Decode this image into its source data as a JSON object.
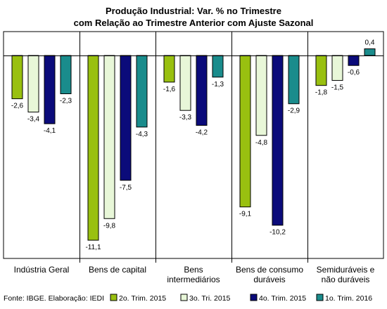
{
  "chart_data": {
    "type": "bar",
    "title": "Produção Industrial: Var. % no Trimestre",
    "subtitle": "com Relação ao Trimestre Anterior com Ajuste Sazonal",
    "categories": [
      [
        "Indústria Geral"
      ],
      [
        "Bens de capital"
      ],
      [
        "Bens",
        "intermediários"
      ],
      [
        "Bens de consumo",
        "duráveis"
      ],
      [
        "Semiduráveis e",
        "não duráveis"
      ]
    ],
    "series": [
      {
        "name": "2o. Trim. 2015",
        "color": "#99c010",
        "values": [
          -2.6,
          -11.1,
          -1.6,
          -9.1,
          -1.8
        ]
      },
      {
        "name": "3o. Tri. 2015",
        "color": "#e8f7d8",
        "values": [
          -3.4,
          -9.8,
          -3.3,
          -4.8,
          -1.5
        ]
      },
      {
        "name": "4o. Trim. 2015",
        "color": "#0b0b7a",
        "values": [
          -4.1,
          -7.5,
          -4.2,
          -10.2,
          -0.6
        ]
      },
      {
        "name": "1o. Trim. 2016",
        "color": "#1a8c8c",
        "values": [
          -2.3,
          -4.3,
          -1.3,
          -2.9,
          0.4
        ]
      }
    ],
    "data_labels": [
      [
        "-2,6",
        "-11,1",
        "-1,6",
        "-9,1",
        "-1,8"
      ],
      [
        "-3,4",
        "-9,8",
        "-3,3",
        "-4,8",
        "-1,5"
      ],
      [
        "-4,1",
        "-7,5",
        "-4,2",
        "-10,2",
        "-0,6"
      ],
      [
        "-2,3",
        "-4,3",
        "-1,3",
        "-2,9",
        "0,4"
      ]
    ],
    "ylim": [
      -12,
      1
    ],
    "grid": false,
    "legend_position": "bottom-right"
  },
  "source_note": "Fonte: IBGE. Elaboração: IEDI"
}
